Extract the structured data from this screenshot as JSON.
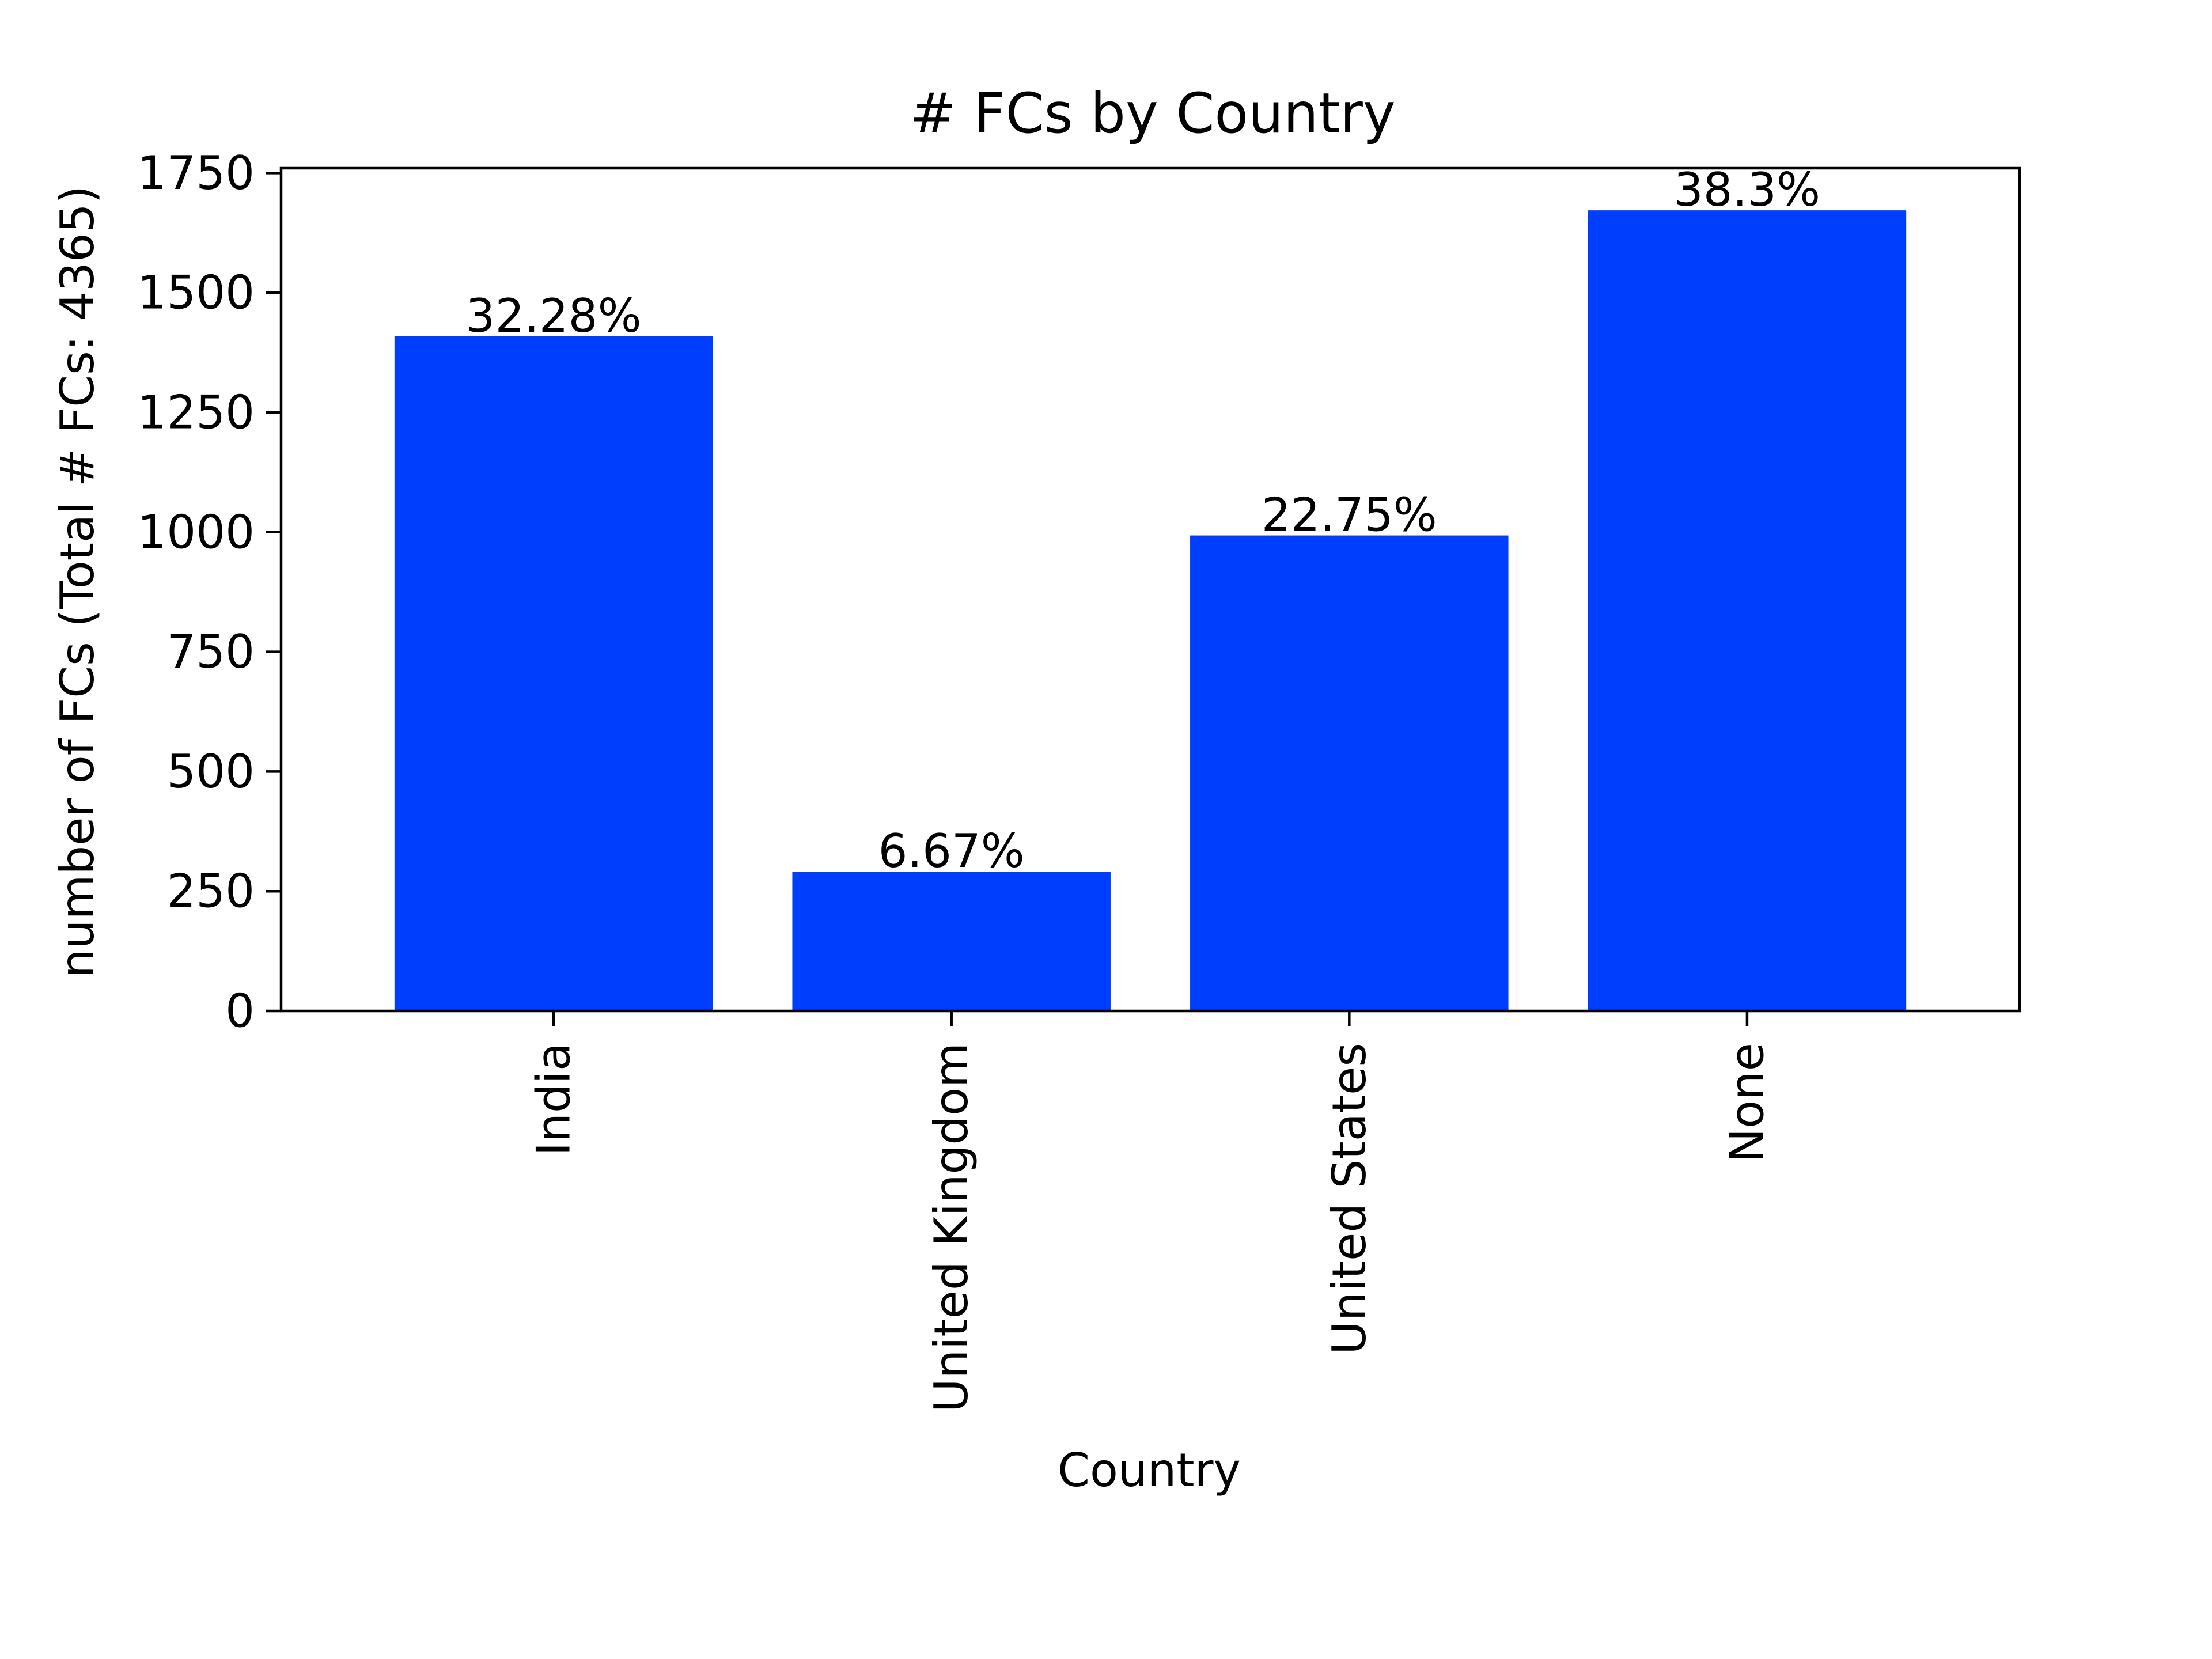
{
  "chart_data": {
    "type": "bar",
    "title": "# FCs by Country",
    "xlabel": "Country",
    "ylabel": "number of FCs (Total # FCs: 4365)",
    "categories": [
      "India",
      "United Kingdom",
      "United States",
      "None"
    ],
    "values": [
      1409,
      291,
      993,
      1672
    ],
    "data_labels": [
      "32.28%",
      "6.67%",
      "22.75%",
      "38.3%"
    ],
    "ylim": [
      0,
      1760
    ],
    "yticks": [
      0,
      250,
      500,
      750,
      1000,
      1250,
      1500,
      1750
    ],
    "grid": false,
    "legend": "none",
    "bar_color": "#003efe"
  }
}
